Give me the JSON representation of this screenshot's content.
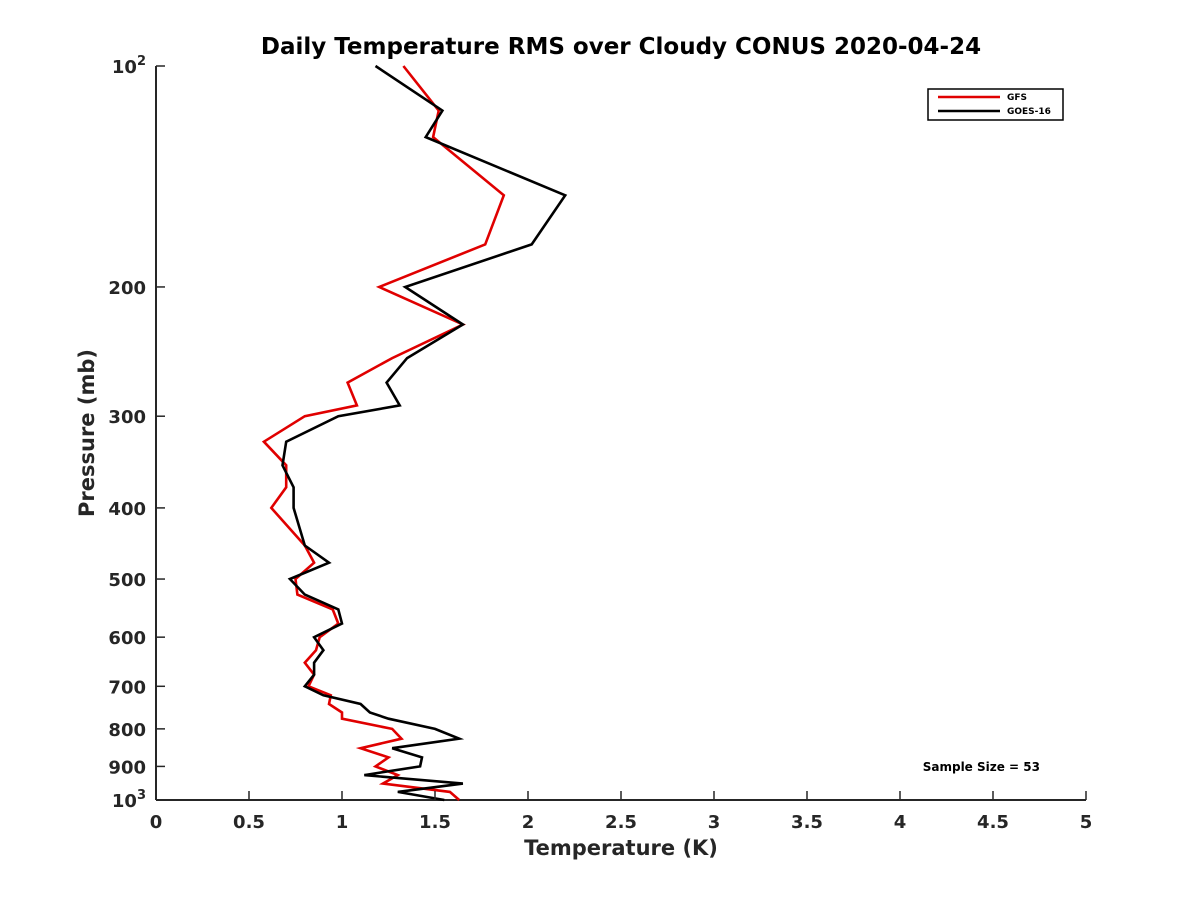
{
  "chart_data": {
    "type": "line",
    "title": "Daily Temperature RMS over Cloudy CONUS 2020-04-24",
    "xlabel": "Temperature (K)",
    "ylabel": "Pressure (mb)",
    "xlim": [
      0,
      5
    ],
    "ylim": [
      100,
      1000
    ],
    "y_scale": "log",
    "y_reversed": true,
    "grid": false,
    "legend_position": "top-right",
    "x_ticks": [
      {
        "value": 0,
        "label": "0"
      },
      {
        "value": 0.5,
        "label": "0.5"
      },
      {
        "value": 1,
        "label": "1"
      },
      {
        "value": 1.5,
        "label": "1.5"
      },
      {
        "value": 2,
        "label": "2"
      },
      {
        "value": 2.5,
        "label": "2.5"
      },
      {
        "value": 3,
        "label": "3"
      },
      {
        "value": 3.5,
        "label": "3.5"
      },
      {
        "value": 4,
        "label": "4"
      },
      {
        "value": 4.5,
        "label": "4.5"
      },
      {
        "value": 5,
        "label": "5"
      }
    ],
    "y_ticks": [
      {
        "value": 100,
        "label": "10",
        "sup": "2"
      },
      {
        "value": 200,
        "label": "200"
      },
      {
        "value": 300,
        "label": "300"
      },
      {
        "value": 400,
        "label": "400"
      },
      {
        "value": 500,
        "label": "500"
      },
      {
        "value": 600,
        "label": "600"
      },
      {
        "value": 700,
        "label": "700"
      },
      {
        "value": 800,
        "label": "800"
      },
      {
        "value": 900,
        "label": "900"
      },
      {
        "value": 1000,
        "label": "10",
        "sup": "3"
      }
    ],
    "series": [
      {
        "name": "GFS",
        "color": "#e00000",
        "points": [
          [
            1.33,
            100
          ],
          [
            1.52,
            115
          ],
          [
            1.49,
            125
          ],
          [
            1.87,
            150
          ],
          [
            1.77,
            175
          ],
          [
            1.2,
            200
          ],
          [
            1.65,
            225
          ],
          [
            1.27,
            250
          ],
          [
            1.03,
            270
          ],
          [
            1.08,
            290
          ],
          [
            0.8,
            300
          ],
          [
            0.58,
            325
          ],
          [
            0.7,
            350
          ],
          [
            0.7,
            375
          ],
          [
            0.62,
            400
          ],
          [
            0.8,
            450
          ],
          [
            0.85,
            475
          ],
          [
            0.75,
            500
          ],
          [
            0.76,
            525
          ],
          [
            0.95,
            550
          ],
          [
            0.98,
            575
          ],
          [
            0.88,
            600
          ],
          [
            0.86,
            625
          ],
          [
            0.8,
            650
          ],
          [
            0.85,
            675
          ],
          [
            0.82,
            700
          ],
          [
            0.94,
            720
          ],
          [
            0.93,
            740
          ],
          [
            1.0,
            760
          ],
          [
            1.0,
            775
          ],
          [
            1.27,
            800
          ],
          [
            1.32,
            825
          ],
          [
            1.1,
            850
          ],
          [
            1.25,
            875
          ],
          [
            1.18,
            900
          ],
          [
            1.3,
            925
          ],
          [
            1.22,
            950
          ],
          [
            1.58,
            975
          ],
          [
            1.63,
            1000
          ]
        ]
      },
      {
        "name": "GOES-16",
        "color": "#000000",
        "points": [
          [
            1.18,
            100
          ],
          [
            1.54,
            115
          ],
          [
            1.45,
            125
          ],
          [
            2.2,
            150
          ],
          [
            2.02,
            175
          ],
          [
            1.34,
            200
          ],
          [
            1.65,
            225
          ],
          [
            1.35,
            250
          ],
          [
            1.24,
            270
          ],
          [
            1.31,
            290
          ],
          [
            0.98,
            300
          ],
          [
            0.7,
            325
          ],
          [
            0.68,
            350
          ],
          [
            0.74,
            375
          ],
          [
            0.74,
            400
          ],
          [
            0.8,
            450
          ],
          [
            0.93,
            475
          ],
          [
            0.72,
            500
          ],
          [
            0.8,
            525
          ],
          [
            0.98,
            550
          ],
          [
            1.0,
            575
          ],
          [
            0.85,
            600
          ],
          [
            0.9,
            625
          ],
          [
            0.85,
            650
          ],
          [
            0.85,
            675
          ],
          [
            0.8,
            700
          ],
          [
            0.9,
            720
          ],
          [
            1.1,
            740
          ],
          [
            1.15,
            760
          ],
          [
            1.25,
            775
          ],
          [
            1.5,
            800
          ],
          [
            1.63,
            825
          ],
          [
            1.27,
            850
          ],
          [
            1.43,
            875
          ],
          [
            1.42,
            900
          ],
          [
            1.12,
            925
          ],
          [
            1.65,
            950
          ],
          [
            1.3,
            975
          ],
          [
            1.55,
            1000
          ]
        ]
      }
    ],
    "annotations": [
      {
        "text": "Sample Size = 53"
      }
    ]
  }
}
